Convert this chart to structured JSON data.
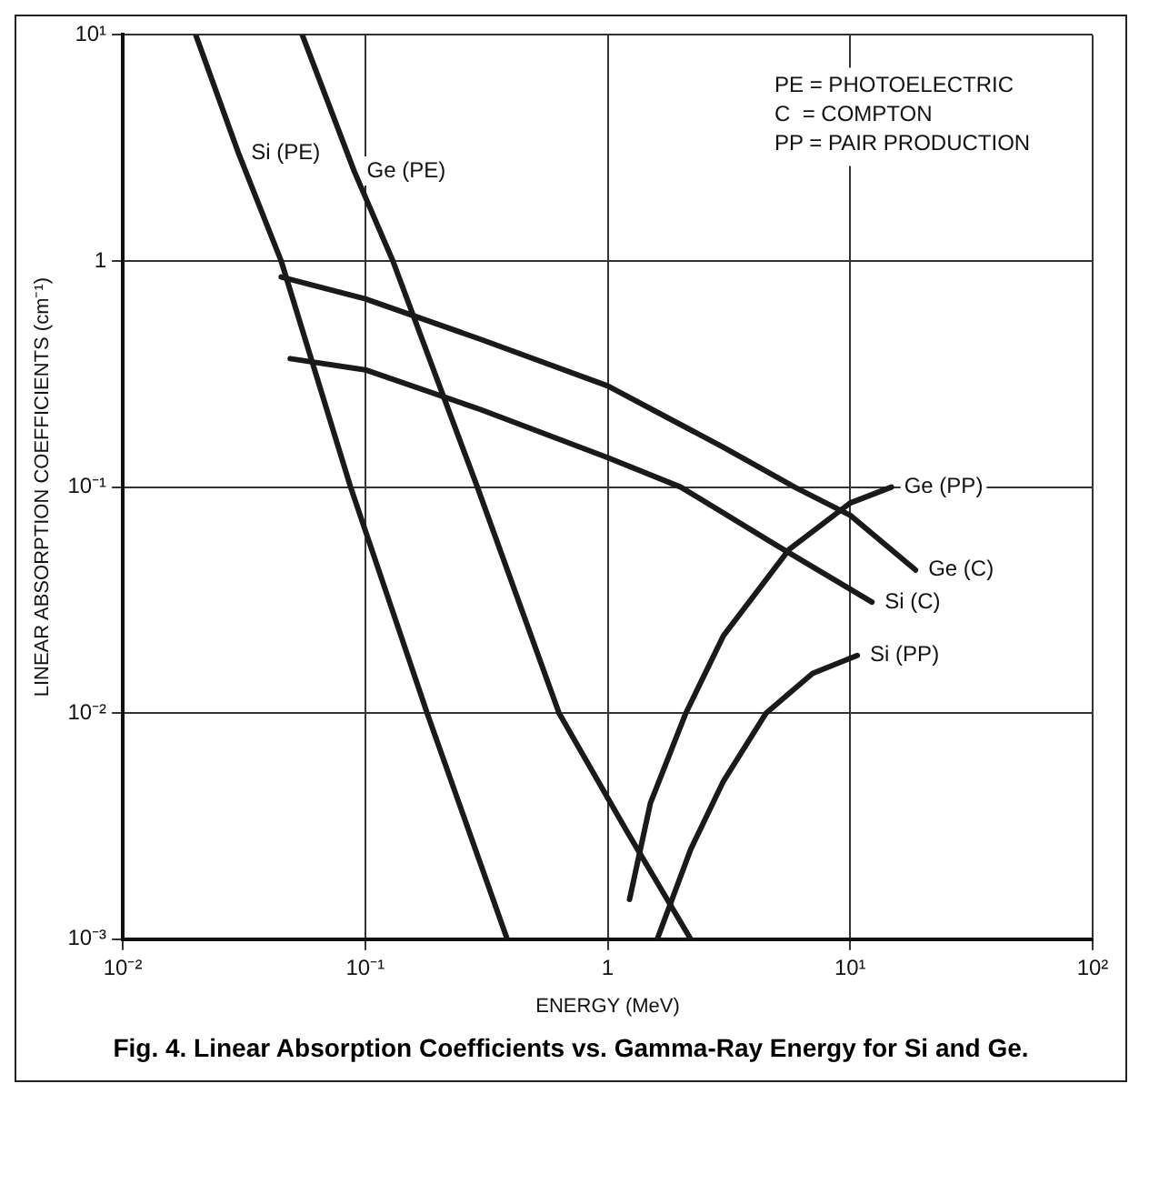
{
  "chart_data": {
    "type": "line",
    "title": "Fig. 4.  Linear Absorption Coefficients vs. Gamma-Ray Energy for Si and Ge.",
    "xlabel": "ENERGY (MeV)",
    "ylabel": "LINEAR ABSORPTION COEFFICIENTS (cm⁻¹)",
    "log": "xy",
    "grid": true,
    "legend": false,
    "marker": "none",
    "line_style": "solid",
    "xlim": [
      0.01,
      100
    ],
    "ylim": [
      0.001,
      10
    ],
    "xticks": [
      {
        "value": 0.01,
        "label": "10⁻²"
      },
      {
        "value": 0.1,
        "label": "10⁻¹"
      },
      1,
      {
        "value": 10,
        "label": "10¹"
      },
      {
        "value": 100,
        "label": "10²"
      }
    ],
    "yticks": [
      {
        "value": 0.001,
        "label": "10⁻³"
      },
      {
        "value": 0.01,
        "label": "10⁻²"
      },
      {
        "value": 0.1,
        "label": "10⁻¹"
      },
      1,
      {
        "value": 10,
        "label": "10¹"
      }
    ],
    "annotations": [
      "PE = PHOTOELECTRIC",
      "C  = COMPTON",
      "PP = PAIR PRODUCTION"
    ],
    "series": [
      {
        "name": "Si (PE)",
        "color": "#1a1a1a",
        "x": [
          0.02,
          0.03,
          0.045,
          0.087,
          0.18,
          0.385
        ],
        "values": [
          10,
          3,
          1,
          0.1,
          0.01,
          0.001
        ]
      },
      {
        "name": "Ge (PE)",
        "color": "#1a1a1a",
        "x": [
          0.055,
          0.09,
          0.13,
          0.29,
          0.63,
          1.2,
          2.2
        ],
        "values": [
          10,
          2.5,
          1,
          0.1,
          0.01,
          0.003,
          0.001
        ]
      },
      {
        "name": "Ge (C)",
        "color": "#1a1a1a",
        "x": [
          0.045,
          0.1,
          0.3,
          1,
          3,
          5.9,
          10,
          18.6
        ],
        "values": [
          0.85,
          0.68,
          0.45,
          0.28,
          0.15,
          0.1,
          0.075,
          0.043
        ]
      },
      {
        "name": "Si (C)",
        "color": "#1a1a1a",
        "x": [
          0.049,
          0.1,
          0.3,
          1,
          2,
          5,
          12.3
        ],
        "values": [
          0.37,
          0.33,
          0.22,
          0.135,
          0.1,
          0.055,
          0.031
        ]
      },
      {
        "name": "Ge (PP)",
        "color": "#1a1a1a",
        "x": [
          1.23,
          1.5,
          2.1,
          3,
          5.6,
          10,
          14.8
        ],
        "values": [
          0.0015,
          0.004,
          0.01,
          0.022,
          0.053,
          0.085,
          0.1
        ]
      },
      {
        "name": "Si (PP)",
        "color": "#1a1a1a",
        "x": [
          1.6,
          2.2,
          3,
          4.5,
          7,
          10.7
        ],
        "values": [
          0.001,
          0.0025,
          0.005,
          0.01,
          0.015,
          0.018
        ]
      }
    ]
  }
}
